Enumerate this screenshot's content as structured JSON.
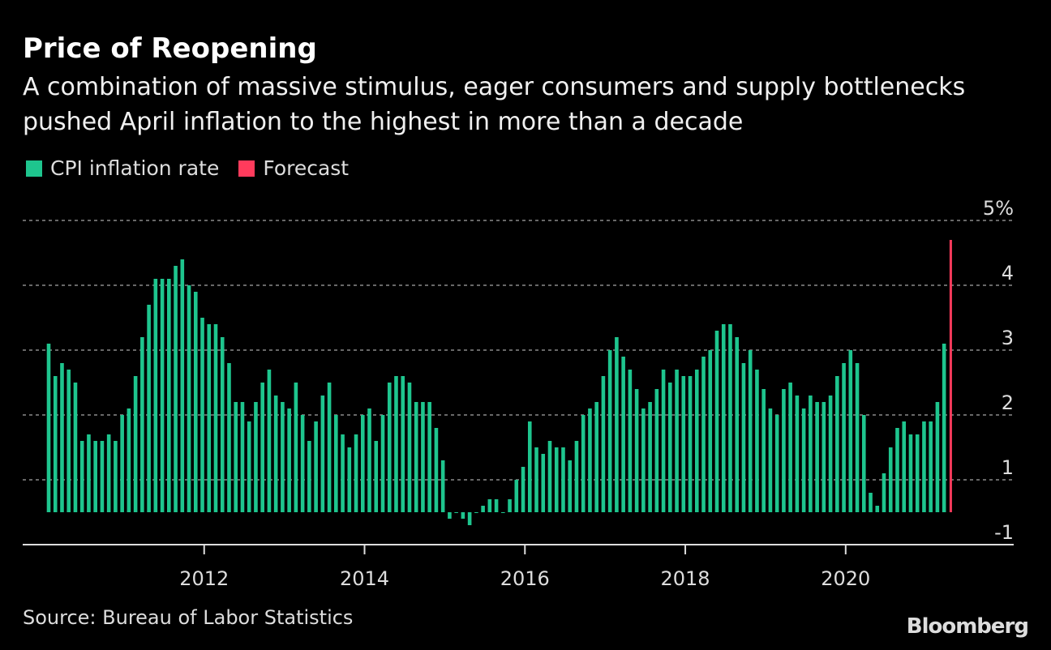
{
  "title": "Price of Reopening",
  "subtitle": "A combination of massive stimulus, eager consumers and supply bottlenecks pushed April inflation to the highest in more than a decade",
  "source": "Source: Bureau of Labor Statistics",
  "logo": "Bloomberg",
  "chart_data": {
    "type": "bar",
    "title": "Price of Reopening",
    "x_start": "2010-01",
    "frequency": "monthly",
    "y_ticks": [
      "5%",
      "4",
      "3",
      "2",
      "1",
      "-1"
    ],
    "x_ticks": [
      "2012",
      "2014",
      "2016",
      "2018",
      "2020"
    ],
    "grid": true,
    "legend_position": "top-left",
    "series": [
      {
        "name": "CPI inflation rate",
        "color": "#1ec58e",
        "values": [
          2.6,
          2.1,
          2.3,
          2.2,
          2.0,
          1.1,
          1.2,
          1.1,
          1.1,
          1.2,
          1.1,
          1.5,
          1.6,
          2.1,
          2.7,
          3.2,
          3.6,
          3.6,
          3.6,
          3.8,
          3.9,
          3.5,
          3.4,
          3.0,
          2.9,
          2.9,
          2.7,
          2.3,
          1.7,
          1.7,
          1.4,
          1.7,
          2.0,
          2.2,
          1.8,
          1.7,
          1.6,
          2.0,
          1.5,
          1.1,
          1.4,
          1.8,
          2.0,
          1.5,
          1.2,
          1.0,
          1.2,
          1.5,
          1.6,
          1.1,
          1.5,
          2.0,
          2.1,
          2.1,
          2.0,
          1.7,
          1.7,
          1.7,
          1.3,
          0.8,
          -0.1,
          0.0,
          -0.1,
          -0.2,
          0.0,
          0.1,
          0.2,
          0.2,
          0.0,
          0.2,
          0.5,
          0.7,
          1.4,
          1.0,
          0.9,
          1.1,
          1.0,
          1.0,
          0.8,
          1.1,
          1.5,
          1.6,
          1.7,
          2.1,
          2.5,
          2.7,
          2.4,
          2.2,
          1.9,
          1.6,
          1.7,
          1.9,
          2.2,
          2.0,
          2.2,
          2.1,
          2.1,
          2.2,
          2.4,
          2.5,
          2.8,
          2.9,
          2.9,
          2.7,
          2.3,
          2.5,
          2.2,
          1.9,
          1.6,
          1.5,
          1.9,
          2.0,
          1.8,
          1.6,
          1.8,
          1.7,
          1.7,
          1.8,
          2.1,
          2.3,
          2.5,
          2.3,
          1.5,
          0.3,
          0.1,
          0.6,
          1.0,
          1.3,
          1.4,
          1.2,
          1.2,
          1.4,
          1.4,
          1.7,
          2.6
        ]
      },
      {
        "name": "Forecast",
        "color": "#ff3b5c",
        "month": "2021-04",
        "values": [
          4.2
        ]
      }
    ]
  }
}
